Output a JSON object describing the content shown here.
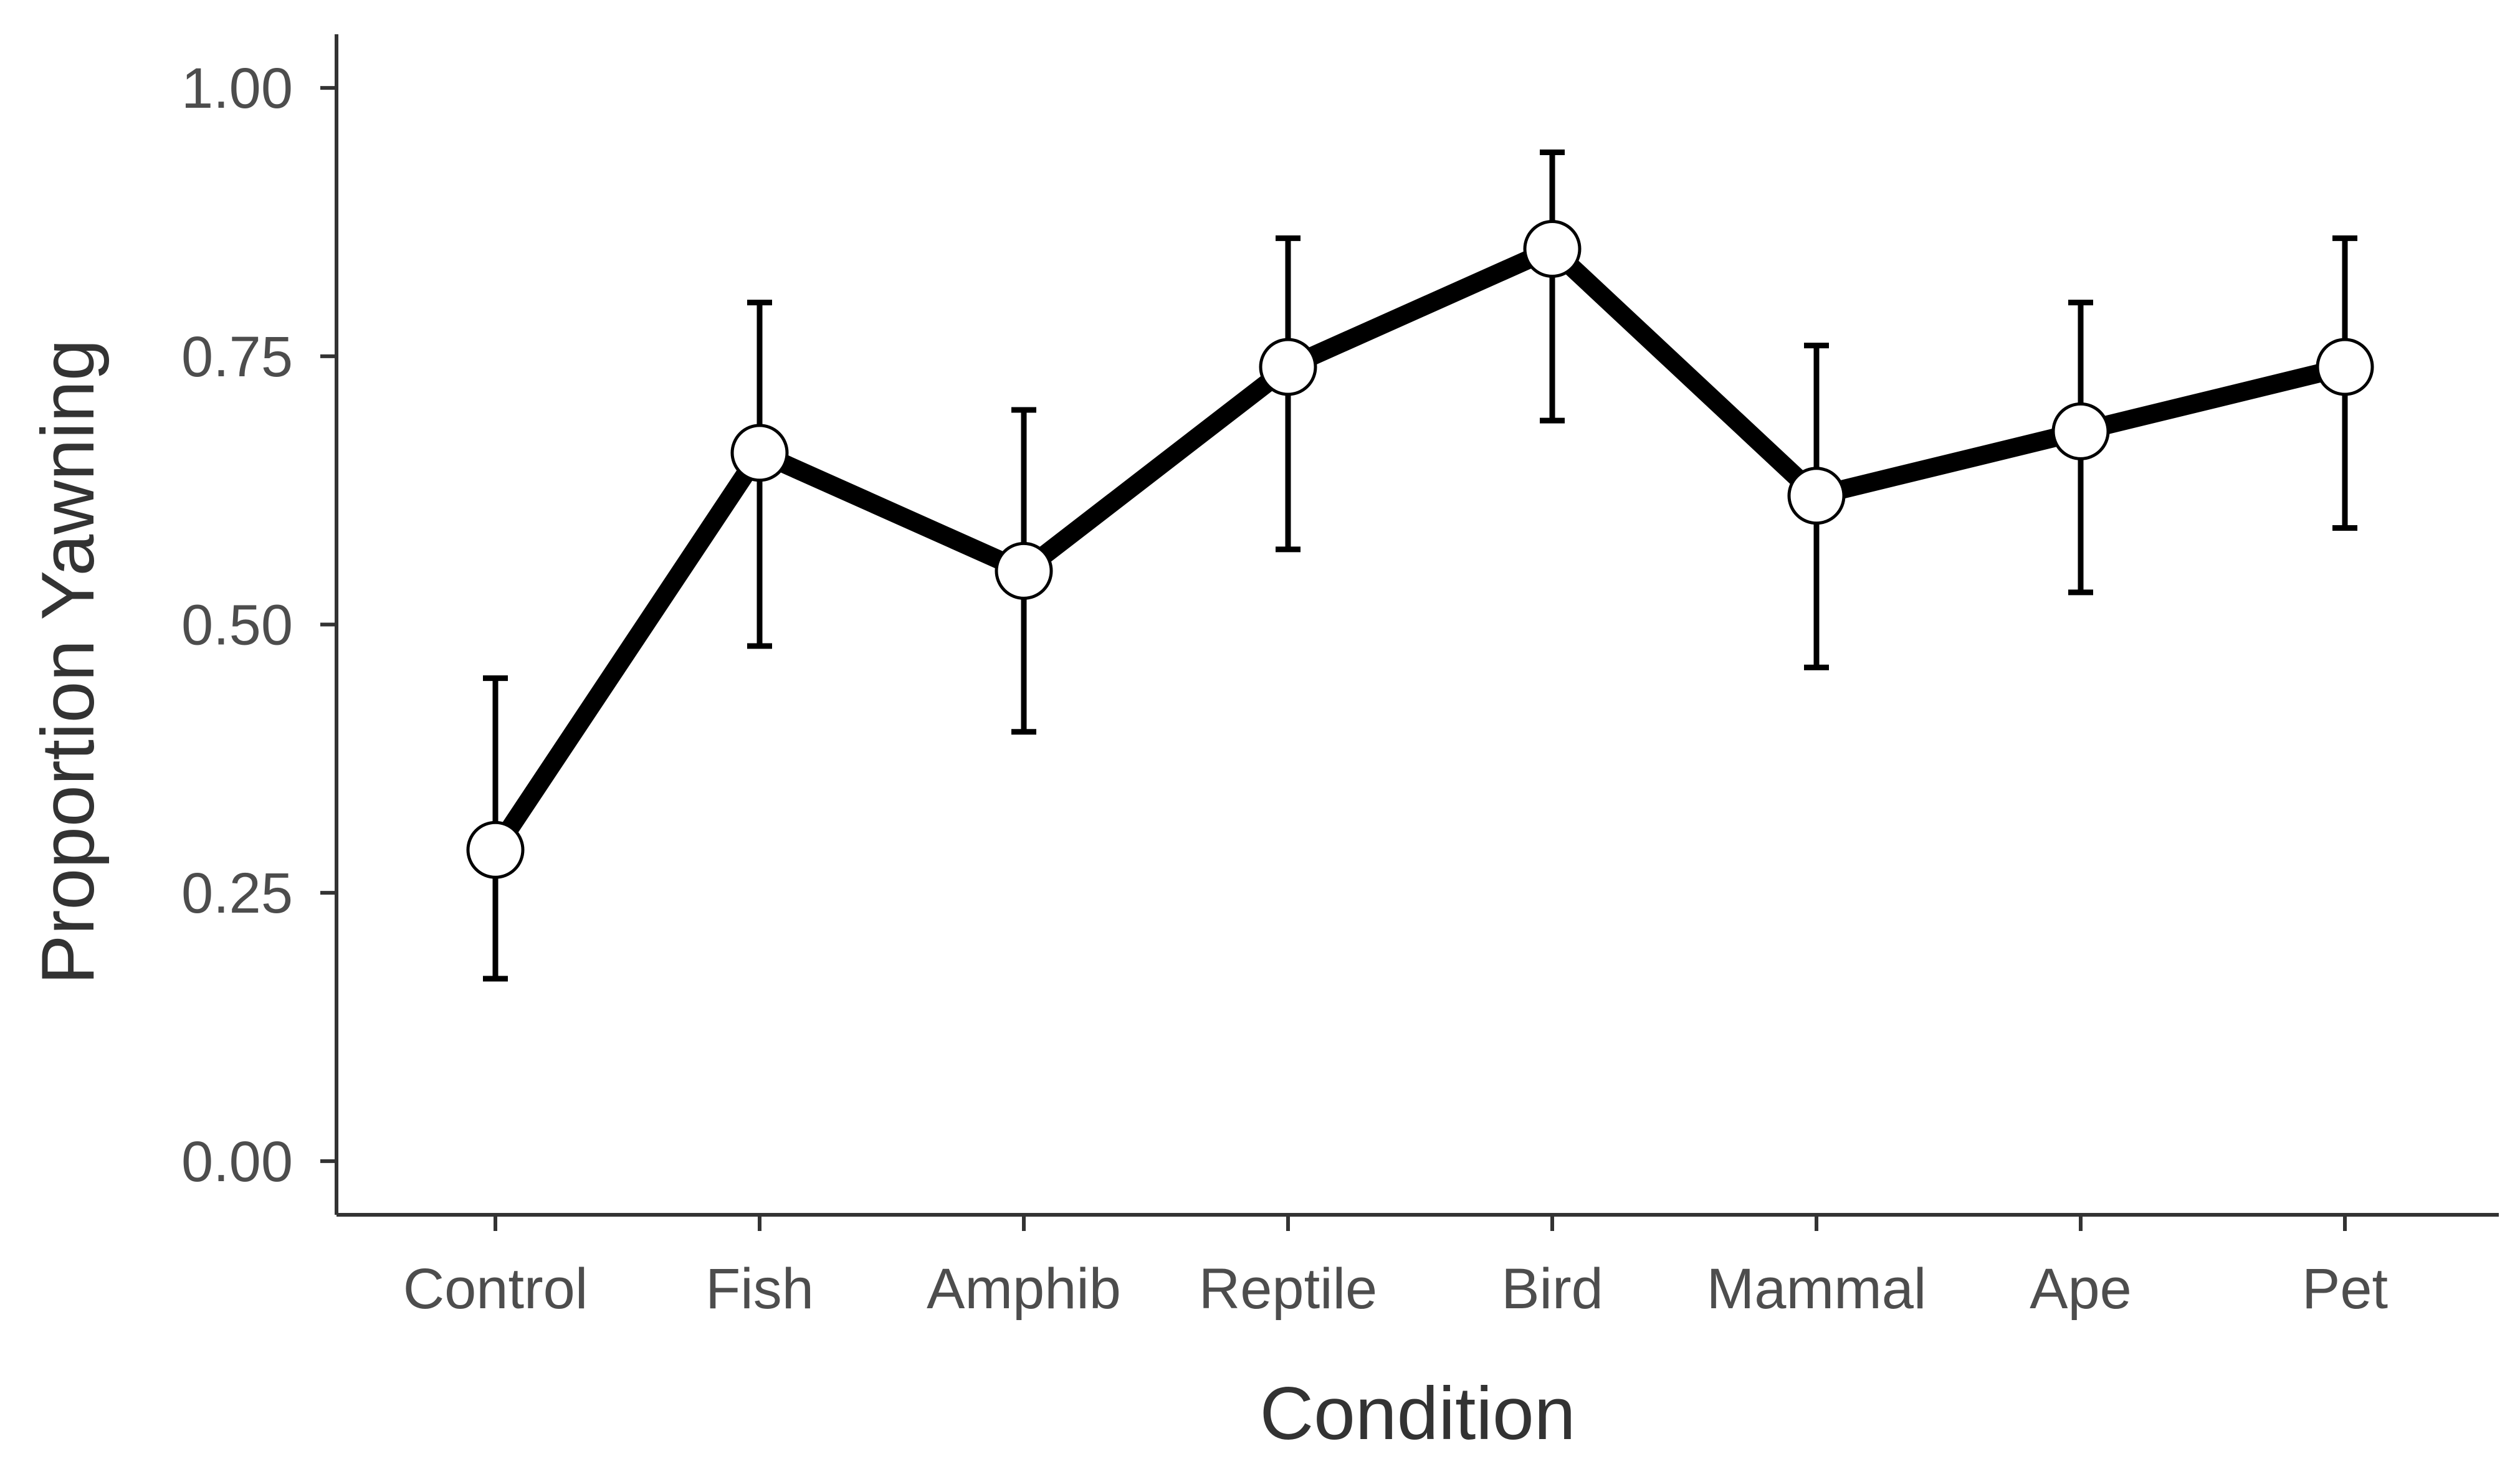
{
  "chart_data": {
    "type": "line",
    "title": "",
    "xlabel": "Condition",
    "ylabel": "Proportion Yawning",
    "categories": [
      "Control",
      "Fish",
      "Amphib",
      "Reptile",
      "Bird",
      "Mammal",
      "Ape",
      "Pet"
    ],
    "values": [
      0.29,
      0.66,
      0.55,
      0.74,
      0.85,
      0.62,
      0.68,
      0.74
    ],
    "error_lower": [
      0.17,
      0.48,
      0.4,
      0.57,
      0.69,
      0.46,
      0.53,
      0.59
    ],
    "error_upper": [
      0.45,
      0.8,
      0.7,
      0.86,
      0.94,
      0.76,
      0.8,
      0.86
    ],
    "ylim": [
      -0.05,
      1.05
    ],
    "yticks": [
      0.0,
      0.25,
      0.5,
      0.75,
      1.0
    ],
    "ytick_labels": [
      "0.00",
      "0.25",
      "0.50",
      "0.75",
      "1.00"
    ],
    "grid": false,
    "colors": {
      "line": "#000000",
      "point_fill": "#ffffff",
      "axis": "#333333",
      "tick_text": "#4d4d4d"
    }
  }
}
